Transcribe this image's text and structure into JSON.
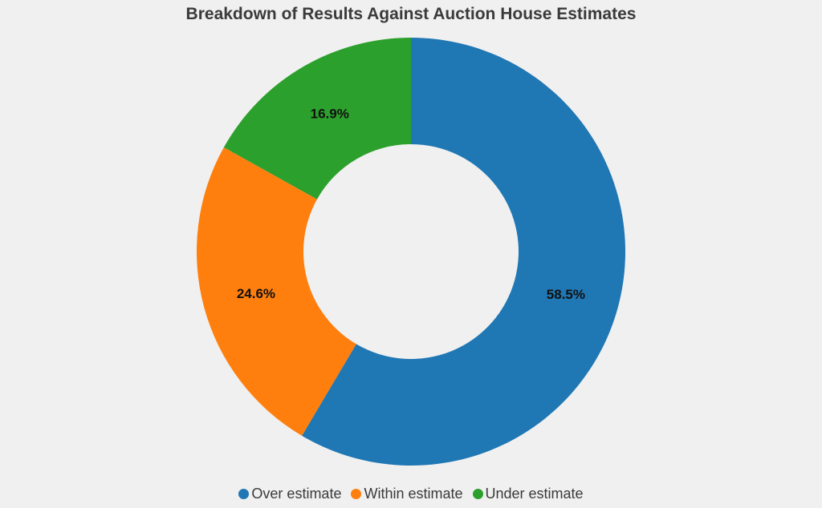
{
  "chart_data": {
    "type": "pie",
    "donut": true,
    "title": "Breakdown of Results Against Auction House Estimates",
    "categories": [
      "Over estimate",
      "Within estimate",
      "Under estimate"
    ],
    "values": [
      58.5,
      24.6,
      16.9
    ],
    "labels": [
      "58.5%",
      "24.6%",
      "16.9%"
    ],
    "colors": [
      "#1f77b4",
      "#ff7f0e",
      "#2ca02c"
    ],
    "start": "top",
    "direction": "clockwise",
    "legend_placement": "bottom"
  }
}
